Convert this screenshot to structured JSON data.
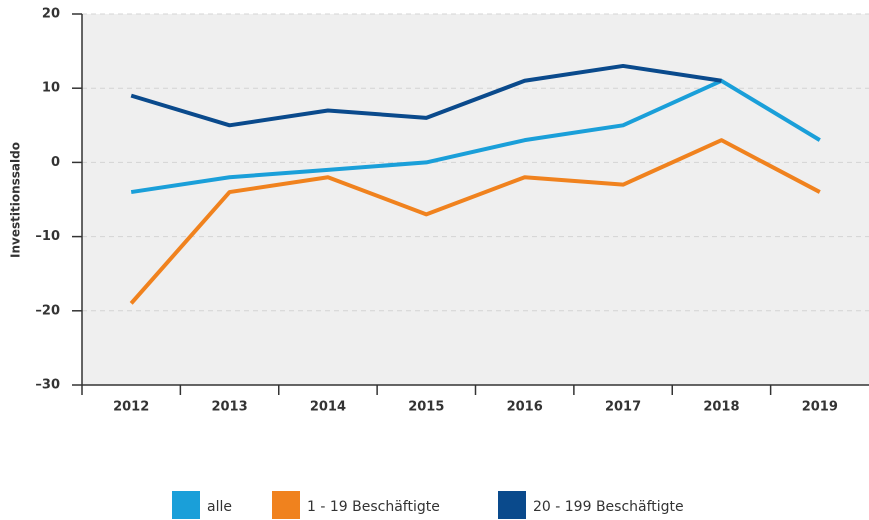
{
  "chart_data": {
    "type": "line",
    "y_label": "Investitionssaldo",
    "categories": [
      "2012",
      "2013",
      "2014",
      "2015",
      "2016",
      "2017",
      "2018",
      "2019"
    ],
    "series": [
      {
        "name": "alle",
        "color": "#1a9fd9",
        "values": [
          -4,
          -2,
          -1,
          0,
          3,
          5,
          11,
          3
        ]
      },
      {
        "name": "1 - 19 Beschäftigte",
        "color": "#f0821e",
        "values": [
          -19,
          -4,
          -2,
          -7,
          -2,
          -3,
          3,
          -4
        ]
      },
      {
        "name": "20 - 199 Beschäftigte",
        "color": "#0a4a8c",
        "values": [
          9,
          5,
          7,
          6,
          11,
          13,
          11,
          null
        ]
      }
    ],
    "ylim": [
      -30,
      20
    ],
    "yticks": [
      20,
      10,
      0,
      {
        "value": -10,
        "label": "–10"
      },
      {
        "value": -20,
        "label": "–20"
      },
      {
        "value": -30,
        "label": "–30"
      }
    ],
    "grid": true
  }
}
